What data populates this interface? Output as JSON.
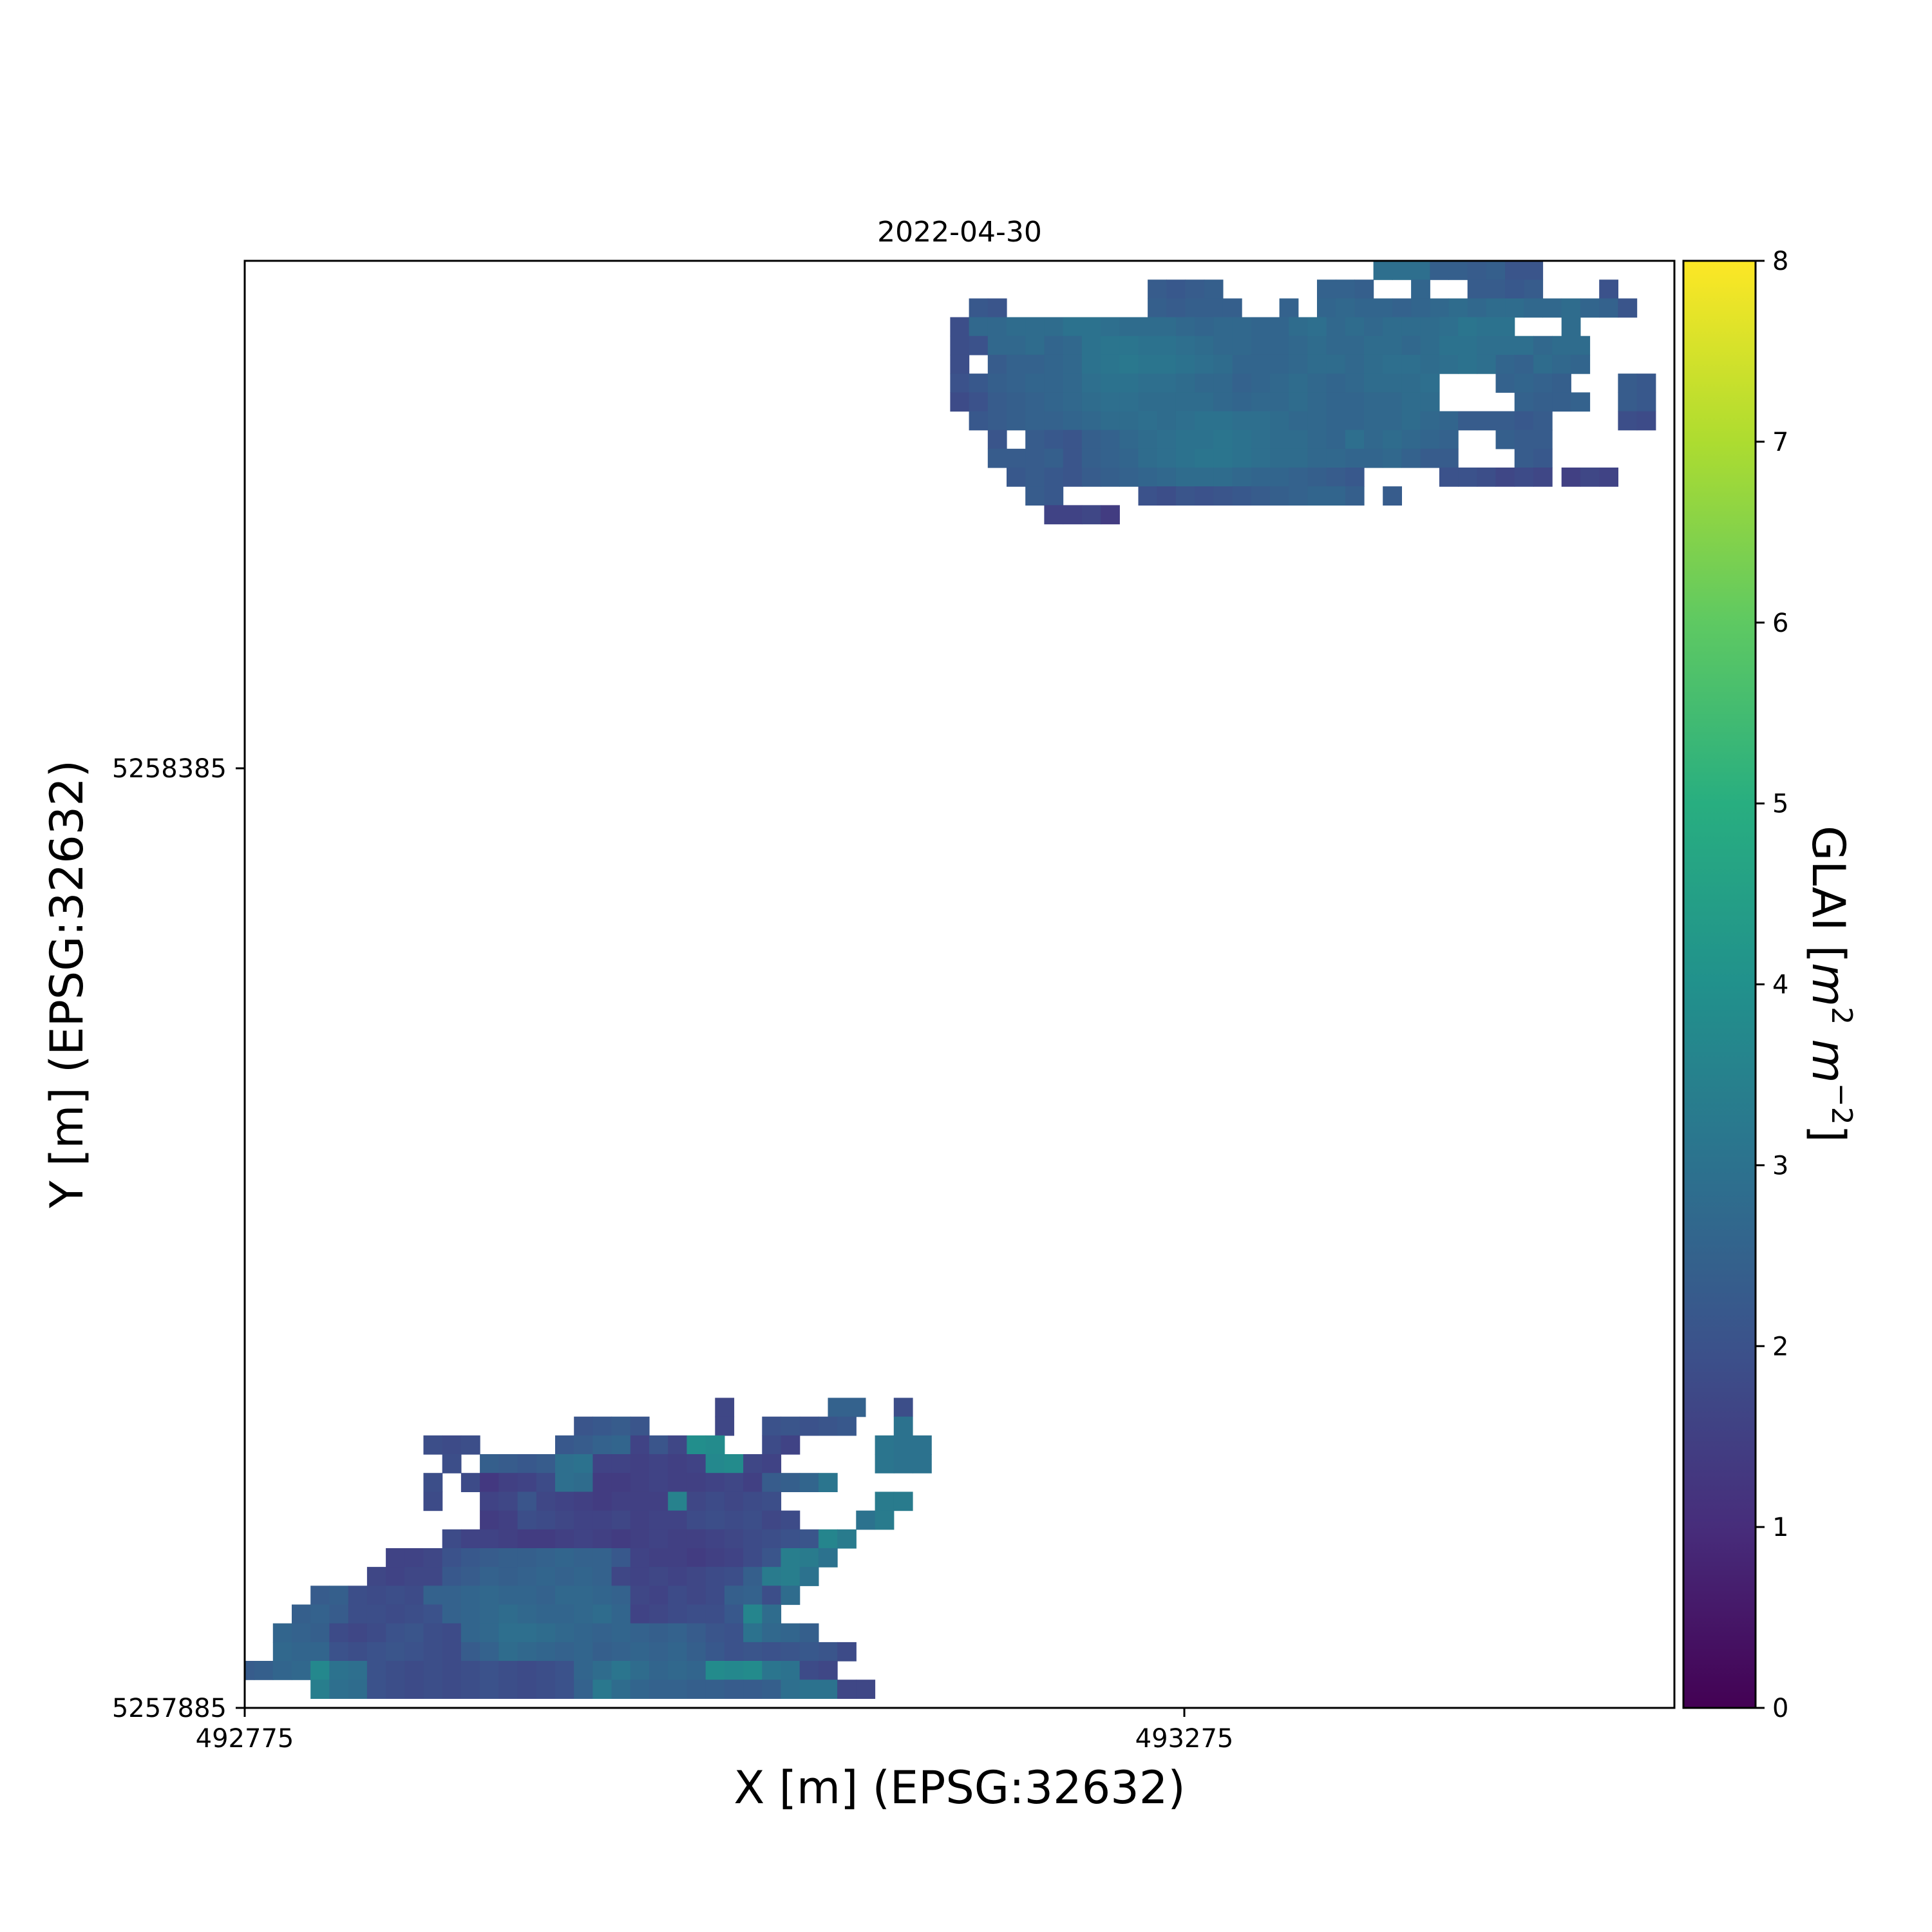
{
  "chart_data": {
    "type": "heatmap",
    "title": "2022-04-30",
    "xlabel": "X [m] (EPSG:32632)",
    "ylabel": "Y [m] (EPSG:32632)",
    "x_ticks": [
      "492775",
      "493275"
    ],
    "y_ticks": [
      "5257885",
      "5258385"
    ],
    "xlim": [
      492775,
      493535
    ],
    "ylim": [
      5257885,
      5258655
    ],
    "cell_size_m": 10,
    "colorbar": {
      "label": "GLAI [m² m⁻²]",
      "label_main": "GLAI [",
      "label_m1": "m",
      "label_sup1": "2",
      "label_m2": "m",
      "label_sup2": "−2",
      "label_close": "]",
      "range": [
        0,
        8
      ],
      "ticks": [
        "0",
        "1",
        "2",
        "3",
        "4",
        "5",
        "6",
        "7",
        "8"
      ],
      "colormap": "viridis"
    },
    "grid": false,
    "cells_note_units": "each row: y value (cell centre, m) followed by runs of [x_start_m, GLAI values...]",
    "field_north": [
      {
        "y": 5258650,
        "runs": [
          [
            493380,
            2.9,
            2.9,
            2.9,
            2.4,
            2.4,
            2.3,
            2.4,
            2.1,
            2.1
          ]
        ]
      },
      {
        "y": 5258640,
        "runs": [
          [
            493260,
            2.3,
            2.2,
            2.3,
            2.4
          ],
          [
            493350,
            2.5,
            2.5,
            2.4
          ],
          [
            493400,
            2.6
          ],
          [
            493430,
            2.3,
            2.3,
            2.2,
            2.3
          ],
          [
            493500,
            2.0
          ]
        ]
      },
      {
        "y": 5258630,
        "runs": [
          [
            493165,
            2.2,
            2.1
          ],
          [
            493260,
            2.4,
            2.3,
            2.4,
            2.4,
            2.4
          ],
          [
            493330,
            2.5
          ],
          [
            493350,
            2.6,
            2.7,
            2.6,
            2.6,
            2.5,
            2.6,
            2.7,
            2.8,
            2.7,
            2.8,
            2.8,
            2.7,
            2.7,
            2.8,
            2.6,
            2.5
          ],
          [
            493510,
            2.1
          ]
        ]
      },
      {
        "y": 5258620,
        "runs": [
          [
            493155,
            1.9,
            2.7,
            2.7,
            2.8,
            2.8,
            2.8,
            3.0,
            3.0,
            2.9,
            2.8,
            2.8,
            2.8,
            2.7,
            2.6,
            2.7,
            2.7,
            2.6,
            2.6,
            2.8,
            2.9,
            2.7,
            2.8,
            2.7,
            2.8,
            2.8,
            2.8,
            2.9,
            3.1,
            3.0,
            3.0
          ],
          [
            493480,
            2.8
          ]
        ]
      },
      {
        "y": 5258610,
        "runs": [
          [
            493155,
            1.9,
            2.0,
            2.7,
            2.7,
            2.8,
            2.6,
            2.7,
            3.0,
            3.1,
            3.1,
            3.0,
            3.0,
            2.9,
            2.8,
            2.7,
            2.7,
            2.6,
            2.6,
            2.7,
            2.8,
            2.7,
            2.7,
            2.8,
            2.8,
            2.7,
            2.8,
            3.0,
            3.0,
            2.9,
            2.9,
            2.9
          ],
          [
            493465,
            2.7,
            2.8,
            2.8
          ]
        ]
      },
      {
        "y": 5258600,
        "runs": [
          [
            493155,
            1.9
          ],
          [
            493175,
            2.3,
            2.5,
            2.5,
            2.6,
            2.7,
            3.0,
            3.1,
            3.2,
            3.1,
            3.1,
            3.0,
            2.9,
            2.8,
            2.6,
            2.6,
            2.6,
            2.7,
            2.8,
            2.8,
            2.7,
            2.8,
            2.9,
            2.9,
            2.8,
            2.9,
            3.0,
            2.9,
            2.6,
            2.5,
            2.8,
            2.7,
            2.6
          ]
        ]
      },
      {
        "y": 5258590,
        "runs": [
          [
            493155,
            2.0,
            2.2,
            2.4,
            2.5,
            2.6,
            2.6,
            2.7,
            2.9,
            3.0,
            3.0,
            2.9,
            2.9,
            2.8,
            2.7,
            2.7,
            2.5,
            2.6,
            2.7,
            2.8,
            2.7,
            2.6,
            2.7,
            2.8,
            2.8,
            2.8,
            2.9
          ],
          [
            493445,
            2.5,
            2.6,
            2.5,
            2.4
          ],
          [
            493510,
            2.3,
            2.2
          ]
        ]
      },
      {
        "y": 5258580,
        "runs": [
          [
            493155,
            1.8,
            2.0,
            2.3,
            2.4,
            2.5,
            2.6,
            2.7,
            2.8,
            2.9,
            2.9,
            2.8,
            2.8,
            2.8,
            2.8,
            2.7,
            2.6,
            2.7,
            2.7,
            2.8,
            2.7,
            2.6,
            2.6,
            2.7,
            2.7,
            2.8,
            2.8
          ],
          [
            493455,
            2.5,
            2.4,
            2.4,
            2.5
          ],
          [
            493510,
            2.3,
            2.2
          ]
        ]
      },
      {
        "y": 5258570,
        "runs": [
          [
            493165,
            2.2,
            2.3,
            2.4,
            2.5,
            2.5,
            2.6,
            2.7,
            2.8,
            2.8,
            2.9,
            2.8,
            2.9,
            3.0,
            3.0,
            2.9,
            2.9,
            2.8,
            2.7,
            2.7,
            2.6,
            2.6,
            2.7,
            2.7,
            2.8,
            2.7
          ],
          [
            493415,
            2.6,
            2.3,
            2.3,
            2.3,
            2.2,
            2.3
          ],
          [
            493510,
            1.9,
            1.8
          ]
        ]
      },
      {
        "y": 5258560,
        "runs": [
          [
            493175,
            2.1
          ],
          [
            493195,
            2.3,
            2.2,
            2.1,
            2.4,
            2.5,
            2.7,
            2.8,
            2.9,
            3.0,
            3.0,
            3.1,
            3.0,
            2.9,
            2.8,
            2.8,
            2.7,
            2.6,
            2.9,
            2.7,
            2.8,
            2.7,
            2.6,
            2.5
          ],
          [
            493445,
            2.4,
            2.3,
            2.3
          ]
        ]
      },
      {
        "y": 5258550,
        "runs": [
          [
            493175,
            2.3,
            2.3,
            2.3,
            2.4,
            2.1,
            2.4,
            2.5,
            2.6,
            2.8,
            2.9,
            3.0,
            3.1,
            3.1,
            3.0,
            2.9,
            2.8,
            2.8,
            2.7,
            2.7,
            2.6,
            2.6,
            2.7,
            2.5,
            2.3,
            2.3
          ],
          [
            493455,
            2.3,
            2.2
          ]
        ]
      },
      {
        "y": 5258540,
        "runs": [
          [
            493185,
            2.2,
            2.3,
            2.2,
            2.1,
            2.3,
            2.4,
            2.5,
            2.6,
            2.7,
            2.8,
            2.8,
            2.8,
            2.7,
            2.6,
            2.6,
            2.5,
            2.4,
            2.3,
            2.2
          ],
          [
            493415,
            2.0,
            2.0,
            1.9,
            1.7,
            1.8,
            1.7
          ],
          [
            493480,
            1.5,
            1.7,
            1.6
          ]
        ]
      },
      {
        "y": 5258530,
        "runs": [
          [
            493195,
            2.3,
            2.2
          ],
          [
            493255,
            2.0,
            1.9,
            2.1,
            2.0,
            2.1,
            2.2,
            2.3,
            2.4,
            2.5,
            2.6,
            2.6,
            2.4
          ],
          [
            493385,
            2.3
          ]
        ]
      },
      {
        "y": 5258520,
        "runs": [
          [
            493205,
            1.6,
            1.6,
            1.7,
            1.4
          ]
        ]
      }
    ],
    "field_south": [
      {
        "y": 5258045,
        "runs": [
          [
            493030,
            1.7
          ],
          [
            493090,
            2.5,
            2.5
          ],
          [
            493125,
            1.9
          ]
        ]
      },
      {
        "y": 5258035,
        "runs": [
          [
            492955,
            2.1,
            2.2,
            2.3,
            2.1
          ],
          [
            493030,
            1.7
          ],
          [
            493055,
            2.0,
            2.1,
            2.0,
            2.1,
            2.2
          ],
          [
            493125,
            3.0
          ]
        ]
      },
      {
        "y": 5258025,
        "runs": [
          [
            492875,
            1.9,
            1.8,
            1.9
          ],
          [
            492945,
            2.2,
            2.3,
            2.5,
            2.6,
            1.6,
            2.1,
            1.7,
            3.9,
            3.8
          ],
          [
            493055,
            1.8,
            1.6
          ],
          [
            493115,
            3.1,
            3.0,
            3.0
          ]
        ]
      },
      {
        "y": 5258015,
        "runs": [
          [
            492885,
            1.9
          ],
          [
            492905,
            2.4,
            2.3,
            2.2,
            2.3,
            2.9,
            3.0,
            1.6,
            1.6,
            1.5,
            1.6,
            1.5,
            1.6,
            3.7,
            3.8,
            1.7,
            1.6
          ],
          [
            493115,
            3.1,
            3.0,
            3.0
          ]
        ]
      },
      {
        "y": 5258005,
        "runs": [
          [
            492875,
            1.9
          ],
          [
            492895,
            1.8,
            1.3,
            1.5,
            1.6,
            1.8,
            2.9,
            2.8,
            1.4,
            1.4,
            1.5,
            1.6,
            1.5,
            1.5,
            1.6,
            1.7,
            1.5,
            2.3,
            2.4,
            2.6,
            3.1
          ]
        ]
      },
      {
        "y": 5257995,
        "runs": [
          [
            492875,
            1.8
          ],
          [
            492905,
            1.6,
            1.7,
            2.1,
            1.7,
            1.6,
            1.5,
            1.4,
            1.5,
            1.5,
            1.5,
            3.5,
            1.7,
            1.8,
            1.7,
            1.8,
            1.9
          ],
          [
            493115,
            3.3,
            3.3
          ]
        ]
      },
      {
        "y": 5257985,
        "runs": [
          [
            492905,
            1.4,
            1.5,
            1.9,
            1.8,
            1.7,
            1.6,
            1.6,
            1.7,
            1.5,
            1.6,
            1.6,
            1.8,
            1.9,
            1.8,
            1.9,
            1.7,
            1.8
          ],
          [
            493105,
            3.0,
            3.3
          ]
        ]
      },
      {
        "y": 5257975,
        "runs": [
          [
            492885,
            1.8,
            1.6,
            1.6,
            1.5,
            1.4,
            1.4,
            1.5,
            1.6,
            1.5,
            1.4,
            1.5,
            1.6,
            1.5,
            1.5,
            1.6,
            1.7,
            1.8,
            1.9,
            2.0,
            2.1,
            3.6,
            3.3
          ]
        ]
      },
      {
        "y": 5257965,
        "runs": [
          [
            492855,
            1.6,
            1.6,
            1.7,
            2.0,
            2.2,
            2.3,
            2.4,
            2.4,
            2.5,
            2.6,
            2.5,
            2.5,
            2.2,
            1.6,
            1.5,
            1.5,
            1.4,
            1.5,
            1.6,
            1.8,
            2.1,
            3.4,
            3.3,
            3.0
          ]
        ]
      },
      {
        "y": 5257955,
        "runs": [
          [
            492845,
            1.7,
            1.6,
            1.7,
            1.7,
            2.2,
            2.3,
            2.5,
            2.4,
            2.5,
            2.6,
            2.5,
            2.6,
            2.5,
            1.7,
            1.6,
            1.7,
            1.6,
            1.7,
            1.8,
            1.9,
            2.4,
            3.3,
            3.4,
            3.0
          ]
        ]
      },
      {
        "y": 5257945,
        "runs": [
          [
            492815,
            2.3,
            2.4,
            1.9,
            1.8,
            1.9,
            1.8,
            2.5,
            2.5,
            2.6,
            2.7,
            2.6,
            2.6,
            2.5,
            2.7,
            2.7,
            2.6,
            2.5,
            1.7,
            1.6,
            1.8,
            1.7,
            1.8,
            2.4,
            2.5,
            1.9,
            2.8
          ]
        ]
      },
      {
        "y": 5257935,
        "runs": [
          [
            492805,
            2.4,
            2.5,
            2.3,
            1.9,
            1.9,
            1.8,
            1.9,
            2.0,
            2.5,
            2.6,
            2.7,
            2.8,
            2.7,
            2.6,
            2.6,
            2.7,
            2.8,
            2.6,
            1.6,
            1.7,
            1.8,
            1.9,
            1.9,
            2.2,
            3.6,
            2.8
          ]
        ]
      },
      {
        "y": 5257925,
        "runs": [
          [
            492795,
            2.6,
            2.5,
            2.4,
            1.8,
            1.7,
            1.8,
            2.0,
            2.1,
            1.9,
            1.8,
            2.6,
            2.7,
            2.9,
            2.9,
            2.8,
            2.7,
            2.6,
            2.5,
            2.6,
            2.5,
            2.4,
            2.5,
            2.3,
            2.1,
            2.0,
            3.0,
            2.7,
            2.6,
            2.4
          ]
        ]
      },
      {
        "y": 5257915,
        "runs": [
          [
            492795,
            2.7,
            2.6,
            2.6,
            2.0,
            1.9,
            2.0,
            2.1,
            2.0,
            1.9,
            1.8,
            2.3,
            2.5,
            2.8,
            2.7,
            2.6,
            2.5,
            2.6,
            2.4,
            2.5,
            2.6,
            2.5,
            2.6,
            2.4,
            2.2,
            2.0,
            2.1,
            2.0,
            2.1,
            2.2,
            2.1,
            1.8
          ]
        ]
      },
      {
        "y": 5257905,
        "runs": [
          [
            492775,
            2.3,
            2.4,
            2.6,
            2.7,
            3.7,
            3.0,
            2.9,
            2.0,
            1.9,
            1.8,
            1.9,
            1.8,
            1.9,
            2.0,
            1.9,
            1.8,
            1.9,
            2.0,
            2.6,
            2.8,
            3.1,
            2.8,
            2.6,
            2.7,
            2.6,
            3.8,
            3.7,
            3.8,
            3.1,
            3.0,
            1.8,
            1.7
          ]
        ]
      },
      {
        "y": 5257895,
        "runs": [
          [
            492815,
            3.4,
            2.9,
            2.8,
            2.0,
            1.9,
            1.8,
            1.9,
            1.8,
            1.9,
            2.0,
            1.9,
            1.8,
            1.9,
            2.0,
            2.5,
            3.2,
            2.8,
            2.6,
            2.5,
            2.5,
            2.4,
            2.4,
            2.3,
            2.3,
            2.4,
            2.9,
            3.0,
            3.0,
            1.7,
            1.7
          ]
        ]
      }
    ]
  }
}
